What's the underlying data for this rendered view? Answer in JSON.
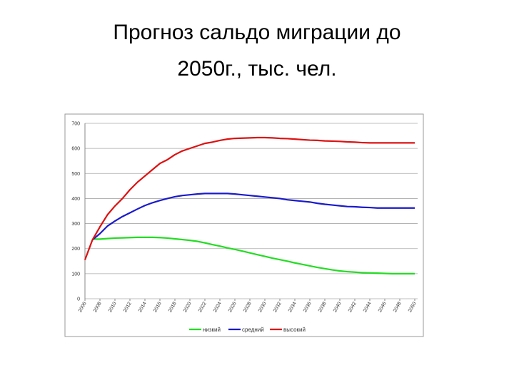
{
  "chart_data": {
    "type": "line",
    "title": [
      "Прогноз сальдо миграции до",
      "2050г., тыс. чел."
    ],
    "x": [
      2006,
      2007,
      2008,
      2009,
      2010,
      2011,
      2012,
      2013,
      2014,
      2015,
      2016,
      2017,
      2018,
      2019,
      2020,
      2021,
      2022,
      2023,
      2024,
      2025,
      2026,
      2027,
      2028,
      2029,
      2030,
      2031,
      2032,
      2033,
      2034,
      2035,
      2036,
      2037,
      2038,
      2039,
      2040,
      2041,
      2042,
      2043,
      2044,
      2045,
      2046,
      2047,
      2048,
      2049,
      2050
    ],
    "series": [
      {
        "name": "низкий",
        "color": "#22dd22",
        "values": [
          null,
          238,
          238,
          240,
          242,
          243,
          244,
          245,
          245,
          245,
          244,
          242,
          239,
          236,
          233,
          229,
          223,
          216,
          210,
          203,
          197,
          190,
          183,
          176,
          169,
          162,
          156,
          150,
          143,
          137,
          131,
          125,
          120,
          115,
          111,
          108,
          106,
          104,
          103,
          102,
          101,
          100,
          100,
          100,
          100
        ]
      },
      {
        "name": "средний",
        "color": "#1a1acc",
        "values": [
          null,
          235,
          260,
          290,
          310,
          328,
          343,
          358,
          372,
          383,
          392,
          400,
          407,
          412,
          415,
          418,
          420,
          420,
          420,
          420,
          418,
          415,
          412,
          409,
          406,
          403,
          400,
          395,
          392,
          389,
          386,
          381,
          377,
          374,
          371,
          368,
          367,
          365,
          364,
          362,
          362,
          362,
          362,
          362,
          362
        ]
      },
      {
        "name": "высокий",
        "color": "#dd1111",
        "values": [
          155,
          235,
          287,
          335,
          370,
          400,
          435,
          465,
          490,
          515,
          540,
          555,
          575,
          590,
          600,
          610,
          620,
          625,
          632,
          637,
          640,
          641,
          642,
          643,
          643,
          642,
          640,
          639,
          637,
          635,
          633,
          632,
          630,
          629,
          628,
          626,
          625,
          623,
          622,
          622,
          622,
          622,
          622,
          622,
          622
        ]
      }
    ],
    "xlim": [
      2006,
      2050
    ],
    "xticks": [
      2006,
      2008,
      2010,
      2012,
      2014,
      2016,
      2018,
      2020,
      2022,
      2024,
      2026,
      2028,
      2030,
      2032,
      2034,
      2036,
      2038,
      2040,
      2042,
      2044,
      2046,
      2048,
      2050
    ],
    "ylim": [
      0,
      700
    ],
    "yticks": [
      0,
      100,
      200,
      300,
      400,
      500,
      600,
      700
    ],
    "grid": true,
    "legend": "bottom"
  }
}
